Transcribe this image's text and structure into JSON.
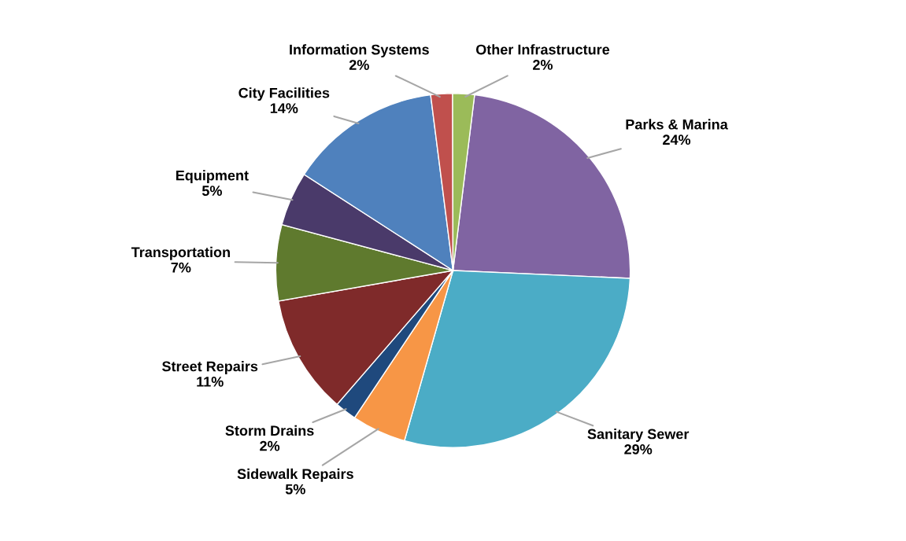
{
  "chart_data": {
    "type": "pie",
    "categories": [
      "Parks & Marina",
      "Sanitary Sewer",
      "Sidewalk Repairs",
      "Storm Drains",
      "Street Repairs",
      "Transportation",
      "Equipment",
      "City Facilities",
      "Information Systems",
      "Other Infrastructure"
    ],
    "values": [
      24,
      29,
      5,
      2,
      11,
      7,
      5,
      14,
      2,
      2
    ],
    "colors": [
      "#8064a2",
      "#4bacc6",
      "#f79646",
      "#1f497d",
      "#7f2a2a",
      "#5f7a2e",
      "#4a3a6a",
      "#4f81bd",
      "#c0504d",
      "#9bbb59"
    ],
    "value_labels": [
      "24%",
      "29%",
      "5%",
      "2%",
      "11%",
      "7%",
      "5%",
      "14%",
      "2%",
      "2%"
    ],
    "legend": false
  }
}
